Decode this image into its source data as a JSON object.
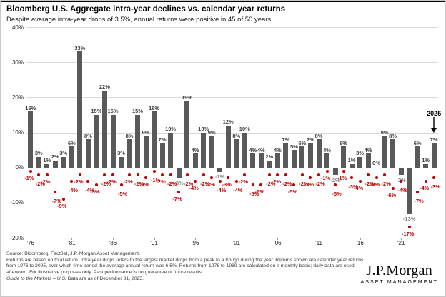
{
  "header": {
    "title": "Bloomberg U.S. Aggregate intra-year declines vs. calendar year returns",
    "subtitle": "Despite average intra-year drops of 3.5%, annual returns were positive in 45 of 50 years"
  },
  "chart_data": {
    "type": "bar",
    "title": "Bloomberg U.S. Aggregate intra-year declines vs. calendar year returns",
    "years": [
      1976,
      1977,
      1978,
      1979,
      1980,
      1981,
      1982,
      1983,
      1984,
      1985,
      1986,
      1987,
      1988,
      1989,
      1990,
      1991,
      1992,
      1993,
      1994,
      1995,
      1996,
      1997,
      1998,
      1999,
      2000,
      2001,
      2002,
      2003,
      2004,
      2005,
      2006,
      2007,
      2008,
      2009,
      2010,
      2011,
      2012,
      2013,
      2014,
      2015,
      2016,
      2017,
      2018,
      2019,
      2020,
      2021,
      2022,
      2023,
      2024,
      2025
    ],
    "series": [
      {
        "name": "Calendar year return",
        "values": [
          16,
          3,
          1,
          2,
          3,
          6,
          33,
          8,
          15,
          22,
          15,
          3,
          8,
          15,
          9,
          16,
          7,
          10,
          -3,
          19,
          4,
          10,
          9,
          -1,
          12,
          8,
          10,
          4,
          4,
          2,
          4,
          7,
          5,
          6,
          7,
          8,
          4,
          -2,
          6,
          1,
          3,
          4,
          0,
          9,
          8,
          -2,
          -13,
          6,
          1,
          7
        ]
      },
      {
        "name": "Intra-year decline",
        "values": [
          -1,
          -2,
          -2,
          -7,
          -9,
          -4,
          -2,
          -4,
          -5,
          -2,
          -2,
          -5,
          -2,
          -2,
          -3,
          -1,
          -2,
          -2,
          -7,
          -2,
          -4,
          -2,
          -3,
          -4,
          -3,
          -4,
          -2,
          -5,
          -5,
          -2,
          -2,
          -2,
          -5,
          -2,
          -3,
          -2,
          -1,
          -5,
          -1,
          -3,
          -4,
          -2,
          -3,
          -2,
          -6,
          -4,
          -17,
          -7,
          -4,
          -3
        ]
      }
    ],
    "x_tick_labels": [
      "'76",
      "'81",
      "'86",
      "'91",
      "'96",
      "'01",
      "'06",
      "'11",
      "'16",
      "'21"
    ],
    "y_tick_labels": [
      "40%",
      "30%",
      "20%",
      "10%",
      "0%",
      "-10%",
      "-20%"
    ],
    "y_ticks": [
      40,
      30,
      20,
      10,
      0,
      -10,
      -20
    ],
    "ylim": [
      -20,
      40
    ],
    "grid": "horizontal",
    "legend": "none",
    "annotation_label": "2025",
    "colors": {
      "bar": "#595959",
      "bar_label": "#404040",
      "negative_bar_label": "#7f7f7f",
      "dot": "#c00000",
      "dot_label": "#c00000",
      "grid": "#d9d9d9",
      "axis": "#333333"
    }
  },
  "footer": {
    "source_line": "Source: Bloomberg, FactSet, J.P. Morgan Asset Management.",
    "note_line": "Returns are based on total return. Intra-year drops refers to the largest market drops from a peak to a trough during the year. Returns shown are calendar year returns from 1976 to 2025, over which time period the average annual return was 6.5%. Returns from 1976 to 1989 are calculated on a monthly basis; daily data are used afterward. For illustrative purposes only. Past performance is no guarantee of future results.",
    "gtm_italic": "Guide to the Markets – U.S.",
    "gtm_rest": " Data are as of December 31, 2025."
  },
  "logo": {
    "name": "J.P.Morgan",
    "sub": "ASSET MANAGEMENT"
  }
}
